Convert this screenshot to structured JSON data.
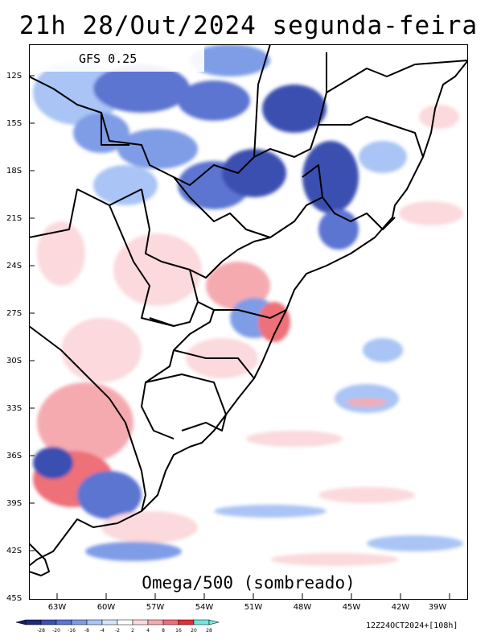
{
  "title": "21h 28/Out/2024 segunda-feira",
  "model": "GFS 0.25",
  "field": "Omega/500 (sombreado)",
  "run": "12Z24OCT2024+[108h]",
  "lat_labels": [
    "12S",
    "15S",
    "18S",
    "21S",
    "24S",
    "27S",
    "30S",
    "33S",
    "36S",
    "39S",
    "42S",
    "45S"
  ],
  "lon_labels": [
    "63W",
    "60W",
    "57W",
    "54W",
    "51W",
    "48W",
    "45W",
    "42W",
    "39W"
  ],
  "colorbar": {
    "levels": [
      "-28",
      "-20",
      "-16",
      "-8",
      "-4",
      "-2",
      "2",
      "4",
      "8",
      "16",
      "20",
      "28"
    ],
    "colors": [
      "#1d2b7a",
      "#3b4fb0",
      "#5c74d1",
      "#7f9ce6",
      "#a9c4f5",
      "#d5e4fb",
      "#ffffff",
      "#fbd9dc",
      "#f5aab0",
      "#ee6f78",
      "#e02f3b",
      "#70e7e0"
    ]
  }
}
